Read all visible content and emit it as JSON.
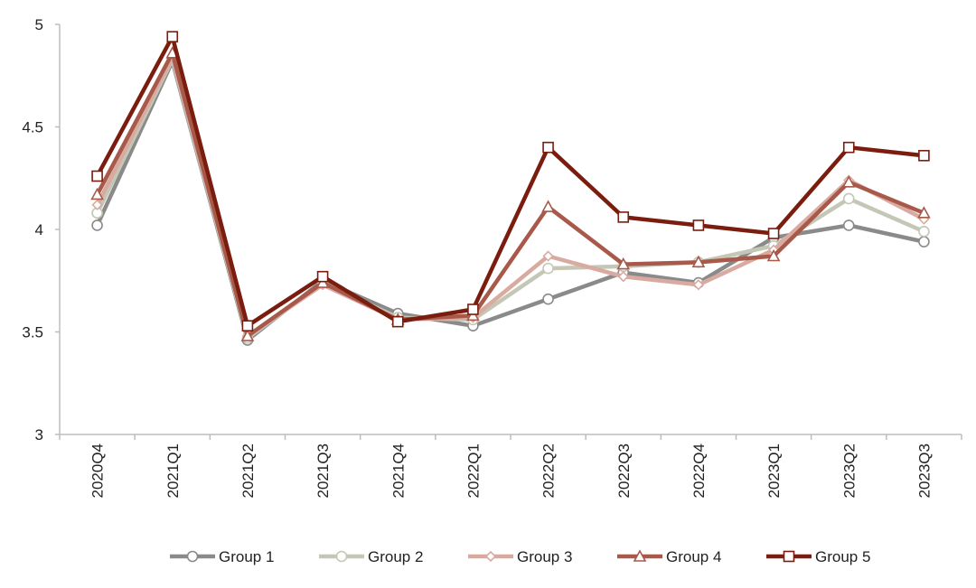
{
  "chart_data": {
    "type": "line",
    "title": "",
    "xlabel": "",
    "ylabel": "",
    "ylim": [
      3,
      5
    ],
    "yticks": [
      "3",
      "3.5",
      "4",
      "4.5",
      "5"
    ],
    "ytick_values": [
      3,
      3.5,
      4,
      4.5,
      5
    ],
    "categories": [
      "2020Q4",
      "2021Q1",
      "2021Q2",
      "2021Q3",
      "2021Q4",
      "2022Q1",
      "2022Q2",
      "2022Q3",
      "2022Q4",
      "2023Q1",
      "2023Q2",
      "2023Q3"
    ],
    "grid": false,
    "legend_position": "bottom",
    "series": [
      {
        "name": "Group 1",
        "color": "#8a8a8a",
        "marker": "circle",
        "values": [
          4.02,
          4.82,
          3.46,
          3.75,
          3.59,
          3.53,
          3.66,
          3.79,
          3.74,
          3.96,
          4.02,
          3.94
        ]
      },
      {
        "name": "Group 2",
        "color": "#c4c7b6",
        "marker": "circle",
        "values": [
          4.08,
          4.83,
          3.47,
          3.74,
          3.57,
          3.56,
          3.81,
          3.82,
          3.84,
          3.92,
          4.15,
          3.99
        ]
      },
      {
        "name": "Group 3",
        "color": "#d9aaa0",
        "marker": "diamond",
        "values": [
          4.12,
          4.84,
          3.48,
          3.73,
          3.56,
          3.57,
          3.87,
          3.77,
          3.73,
          3.9,
          4.24,
          4.05
        ]
      },
      {
        "name": "Group 4",
        "color": "#a8594a",
        "marker": "triangle",
        "values": [
          4.17,
          4.86,
          3.48,
          3.74,
          3.56,
          3.58,
          4.11,
          3.83,
          3.84,
          3.87,
          4.23,
          4.08
        ]
      },
      {
        "name": "Group 5",
        "color": "#7a1c0e",
        "marker": "square",
        "values": [
          4.26,
          4.94,
          3.53,
          3.77,
          3.55,
          3.61,
          4.4,
          4.06,
          4.02,
          3.98,
          4.4,
          4.36
        ]
      }
    ]
  }
}
